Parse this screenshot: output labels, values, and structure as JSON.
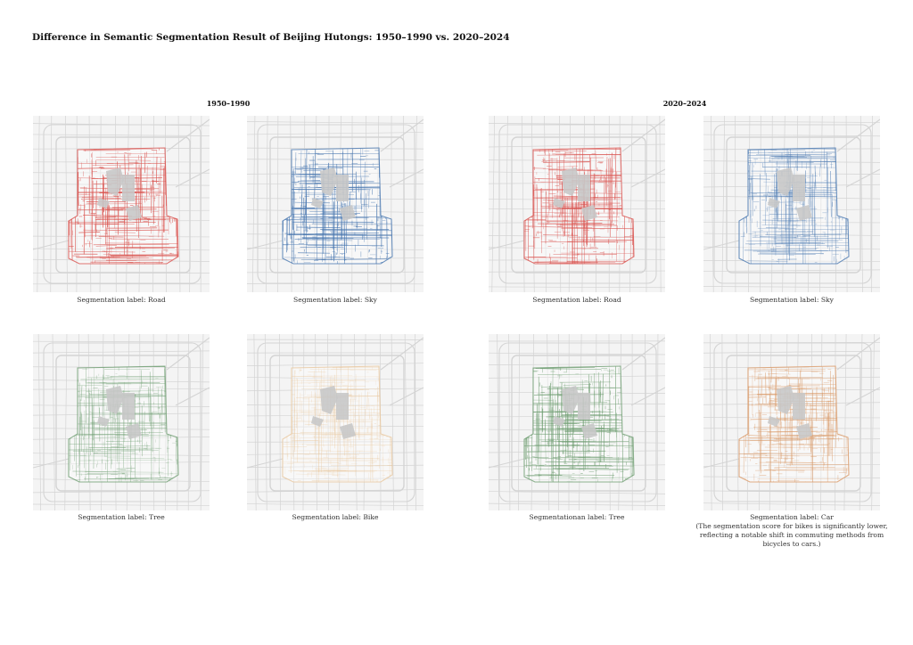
{
  "title": "Difference in Semantic Segmentation Result of Beijing Hutongs: 1950–1990 vs. 2020–2024",
  "periods": [
    "1950–1990",
    "2020–2024"
  ],
  "colors": {
    "background": "#ffffff",
    "map_background": "#f4f4f4",
    "base_roads": "#d4d4d4",
    "landmark_fill": "#c8c8c8",
    "road": "#d9534f",
    "sky": "#4a78b0",
    "tree": "#6f9e72",
    "bike": "#e9c79e",
    "car": "#d99866"
  },
  "panels": [
    {
      "period": "1950–1990",
      "label": "Segmentation label: Road",
      "color": "#d9534f",
      "intensity": 0.85
    },
    {
      "period": "1950–1990",
      "label": "Segmentation label: Sky",
      "color": "#4a78b0",
      "intensity": 0.85
    },
    {
      "period": "2020–2024",
      "label": "Segmentation label: Road",
      "color": "#d9534f",
      "intensity": 0.8
    },
    {
      "period": "2020–2024",
      "label": "Segmentation label: Sky",
      "color": "#4a78b0",
      "intensity": 0.6
    },
    {
      "period": "1950–1990",
      "label": "Segmentation label: Tree",
      "color": "#6f9e72",
      "intensity": 0.55
    },
    {
      "period": "1950–1990",
      "label": "Segmentation label: Bike",
      "color": "#e9c79e",
      "intensity": 0.45
    },
    {
      "period": "2020–2024",
      "label": "Segmentationan label: Tree",
      "color": "#6f9e72",
      "intensity": 0.8
    },
    {
      "period": "2020–2024",
      "label": "Segmentation label: Car",
      "color": "#d99866",
      "intensity": 0.65,
      "note": "(The segmentation score for bikes is significantly lower, reflecting a notable shift in commuting methods from bicycles to cars.)"
    }
  ]
}
